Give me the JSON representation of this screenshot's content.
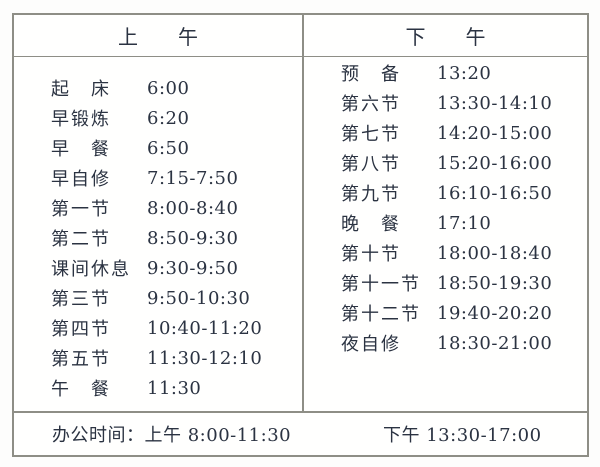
{
  "colors": {
    "border_gray": "#8e8e86",
    "text_ink": "#2b3342",
    "background": "#fffffe"
  },
  "table": {
    "columns": [
      {
        "header": "上　午",
        "rows": [
          {
            "label": "起　床",
            "time": "6:00"
          },
          {
            "label": "早锻炼",
            "time": "6:20"
          },
          {
            "label": "早　餐",
            "time": "6:50"
          },
          {
            "label": "早自修",
            "time": "7:15-7:50"
          },
          {
            "label": "第一节",
            "time": "8:00-8:40"
          },
          {
            "label": "第二节",
            "time": "8:50-9:30"
          },
          {
            "label": "课间休息",
            "time": "9:30-9:50"
          },
          {
            "label": "第三节",
            "time": "9:50-10:30"
          },
          {
            "label": "第四节",
            "time": "10:40-11:20"
          },
          {
            "label": "第五节",
            "time": "11:30-12:10"
          },
          {
            "label": "午　餐",
            "time": "11:30"
          }
        ]
      },
      {
        "header": "下　午",
        "rows": [
          {
            "label": "预　备",
            "time": "13:20"
          },
          {
            "label": "第六节",
            "time": "13:30-14:10"
          },
          {
            "label": "第七节",
            "time": "14:20-15:00"
          },
          {
            "label": "第八节",
            "time": "15:20-16:00"
          },
          {
            "label": "第九节",
            "time": "16:10-16:50"
          },
          {
            "label": "晚　餐",
            "time": "17:10"
          },
          {
            "label": "第十节",
            "time": "18:00-18:40"
          },
          {
            "label": "第十一节",
            "time": "18:50-19:30"
          },
          {
            "label": "第十二节",
            "time": "19:40-20:20"
          },
          {
            "label": "夜自修",
            "time": "18:30-21:00"
          }
        ]
      }
    ],
    "footer": {
      "label": "办公时间：",
      "morning": "上午 8:00-11:30",
      "afternoon": "下午 13:30-17:00"
    }
  }
}
